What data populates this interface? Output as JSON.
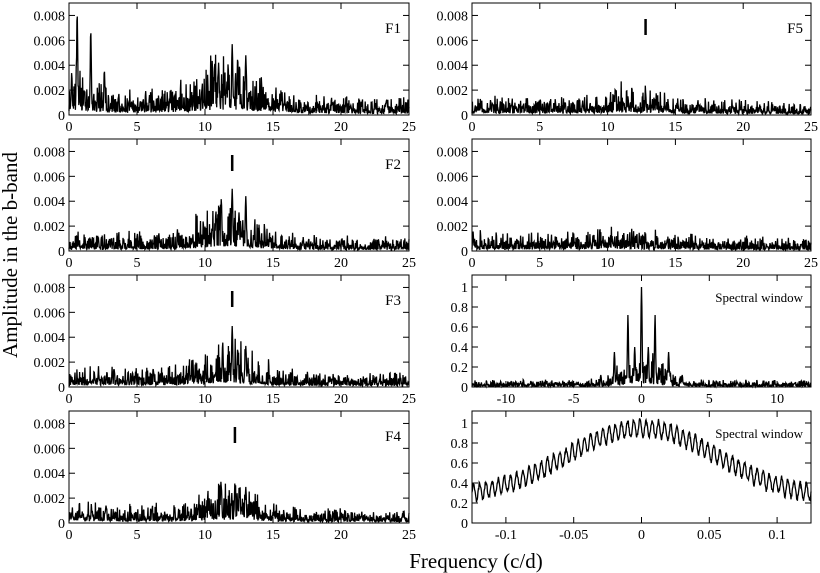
{
  "figure": {
    "ylabel": "Amplitude in the b-band",
    "xlabel": "Frequency (c/d)"
  },
  "chart_data": [
    {
      "type": "line",
      "name": "amp-F1",
      "label": "F1",
      "marker": null,
      "xlim": [
        0,
        25
      ],
      "ylim": [
        0,
        0.009
      ],
      "xticks": [
        0,
        5,
        10,
        15,
        20,
        25
      ],
      "yticks": [
        "0",
        "0.002",
        "0.004",
        "0.006",
        "0.008"
      ],
      "envelope": {
        "base": 0.0008,
        "bumps": [
          [
            11.5,
            2.2,
            0.0018
          ],
          [
            0.8,
            1.0,
            0.0012
          ]
        ],
        "floor": 0.0002,
        "tail": 0.0002
      },
      "peaks": [
        [
          0.6,
          0.0082
        ],
        [
          1.6,
          0.0068
        ],
        [
          2.6,
          0.0036
        ],
        [
          0.2,
          0.0034
        ],
        [
          10.7,
          0.0038
        ],
        [
          11.0,
          0.0042
        ],
        [
          12.0,
          0.0057
        ],
        [
          13.0,
          0.0048
        ],
        [
          11.7,
          0.0041
        ],
        [
          12.4,
          0.0046
        ]
      ]
    },
    {
      "type": "line",
      "name": "amp-F2",
      "label": "F2",
      "marker": 12.0,
      "xlim": [
        0,
        25
      ],
      "ylim": [
        0,
        0.009
      ],
      "xticks": [
        0,
        5,
        10,
        15,
        20,
        25
      ],
      "yticks": [
        "0",
        "0.002",
        "0.004",
        "0.006",
        "0.008"
      ],
      "envelope": {
        "base": 0.0005,
        "bumps": [
          [
            11.7,
            2.0,
            0.0016
          ]
        ],
        "floor": 0.0002,
        "tail": 0.0002
      },
      "peaks": [
        [
          11.2,
          0.0042
        ],
        [
          12.0,
          0.005
        ],
        [
          13.0,
          0.0044
        ],
        [
          10.8,
          0.0032
        ],
        [
          12.5,
          0.0031
        ]
      ]
    },
    {
      "type": "line",
      "name": "amp-F3",
      "label": "F3",
      "marker": 12.0,
      "xlim": [
        0,
        25
      ],
      "ylim": [
        0,
        0.009
      ],
      "xticks": [
        0,
        5,
        10,
        15,
        20,
        25
      ],
      "yticks": [
        "0",
        "0.002",
        "0.004",
        "0.006",
        "0.008"
      ],
      "envelope": {
        "base": 0.0005,
        "bumps": [
          [
            11.8,
            2.0,
            0.0013
          ]
        ],
        "floor": 0.0002,
        "tail": 0.0002
      },
      "peaks": [
        [
          12.0,
          0.0049
        ],
        [
          11.3,
          0.0036
        ],
        [
          13.0,
          0.0033
        ],
        [
          12.4,
          0.0031
        ]
      ]
    },
    {
      "type": "line",
      "name": "amp-F4",
      "label": "F4",
      "marker": 12.2,
      "xlim": [
        0,
        25
      ],
      "ylim": [
        0,
        0.009
      ],
      "xticks": [
        0,
        5,
        10,
        15,
        20,
        25
      ],
      "yticks": [
        "0",
        "0.002",
        "0.004",
        "0.006",
        "0.008"
      ],
      "envelope": {
        "base": 0.0005,
        "bumps": [
          [
            11.8,
            2.0,
            0.001
          ]
        ],
        "floor": 0.0002,
        "tail": 0.0002
      },
      "peaks": [
        [
          12.2,
          0.0032
        ],
        [
          11.2,
          0.003
        ],
        [
          13.0,
          0.0029
        ],
        [
          10.3,
          0.002
        ]
      ]
    },
    {
      "type": "line",
      "name": "amp-F5",
      "label": "F5",
      "marker": 12.8,
      "xlim": [
        0,
        25
      ],
      "ylim": [
        0,
        0.009
      ],
      "xticks": [
        0,
        5,
        10,
        15,
        20,
        25
      ],
      "yticks": [
        "0",
        "0.002",
        "0.004",
        "0.006",
        "0.008"
      ],
      "envelope": {
        "base": 0.0005,
        "bumps": [
          [
            11.5,
            2.0,
            0.0006
          ]
        ],
        "floor": 0.0002,
        "tail": 0.0002
      },
      "peaks": [
        [
          12.8,
          0.0019
        ],
        [
          11.5,
          0.0015
        ],
        [
          10.5,
          0.0013
        ]
      ]
    },
    {
      "type": "line",
      "name": "amp-residual",
      "label": "",
      "marker": null,
      "xlim": [
        0,
        25
      ],
      "ylim": [
        0,
        0.009
      ],
      "xticks": [
        0,
        5,
        10,
        15,
        20,
        25
      ],
      "yticks": [
        "0",
        "0.002",
        "0.004",
        "0.006",
        "0.008"
      ],
      "envelope": {
        "base": 0.0005,
        "bumps": [
          [
            11,
            2.2,
            0.0003
          ]
        ],
        "floor": 0.0002,
        "tail": 0.0002
      },
      "peaks": [
        [
          11.8,
          0.0011
        ],
        [
          10.5,
          0.0009
        ]
      ]
    },
    {
      "type": "line",
      "name": "spectral-window",
      "label": "Spectral window",
      "marker": null,
      "xlim": [
        -12.5,
        12.5
      ],
      "ylim": [
        0,
        1.12
      ],
      "xticks": [
        -10,
        -5,
        0,
        5,
        10
      ],
      "yticks": [
        "0",
        "0.2",
        "0.4",
        "0.6",
        "0.8",
        "1"
      ],
      "envelope": {
        "base": 0.0,
        "bumps": [
          [
            0,
            1.4,
            0.18
          ]
        ],
        "floor": 0.0,
        "tail": 0.04
      },
      "peaks": [
        [
          0,
          1.0
        ],
        [
          -1,
          0.72
        ],
        [
          1,
          0.72
        ],
        [
          -2,
          0.35
        ],
        [
          2,
          0.35
        ],
        [
          -0.5,
          0.4
        ],
        [
          0.5,
          0.4
        ],
        [
          -3,
          0.12
        ],
        [
          3,
          0.12
        ]
      ]
    },
    {
      "type": "line",
      "name": "spectral-window-zoom",
      "label": "Spectral window",
      "marker": null,
      "xlim": [
        -0.125,
        0.125
      ],
      "ylim": [
        0,
        1.12
      ],
      "xticks": [
        -0.1,
        -0.05,
        0,
        0.05,
        0.1
      ],
      "yticks": [
        "0",
        "0.2",
        "0.4",
        "0.6",
        "0.8",
        "1"
      ],
      "envelope": {
        "gauss": [
          0,
          0.055,
          0.7
        ],
        "offset": 0.25,
        "fringe": 0.1
      },
      "peaks": []
    }
  ]
}
